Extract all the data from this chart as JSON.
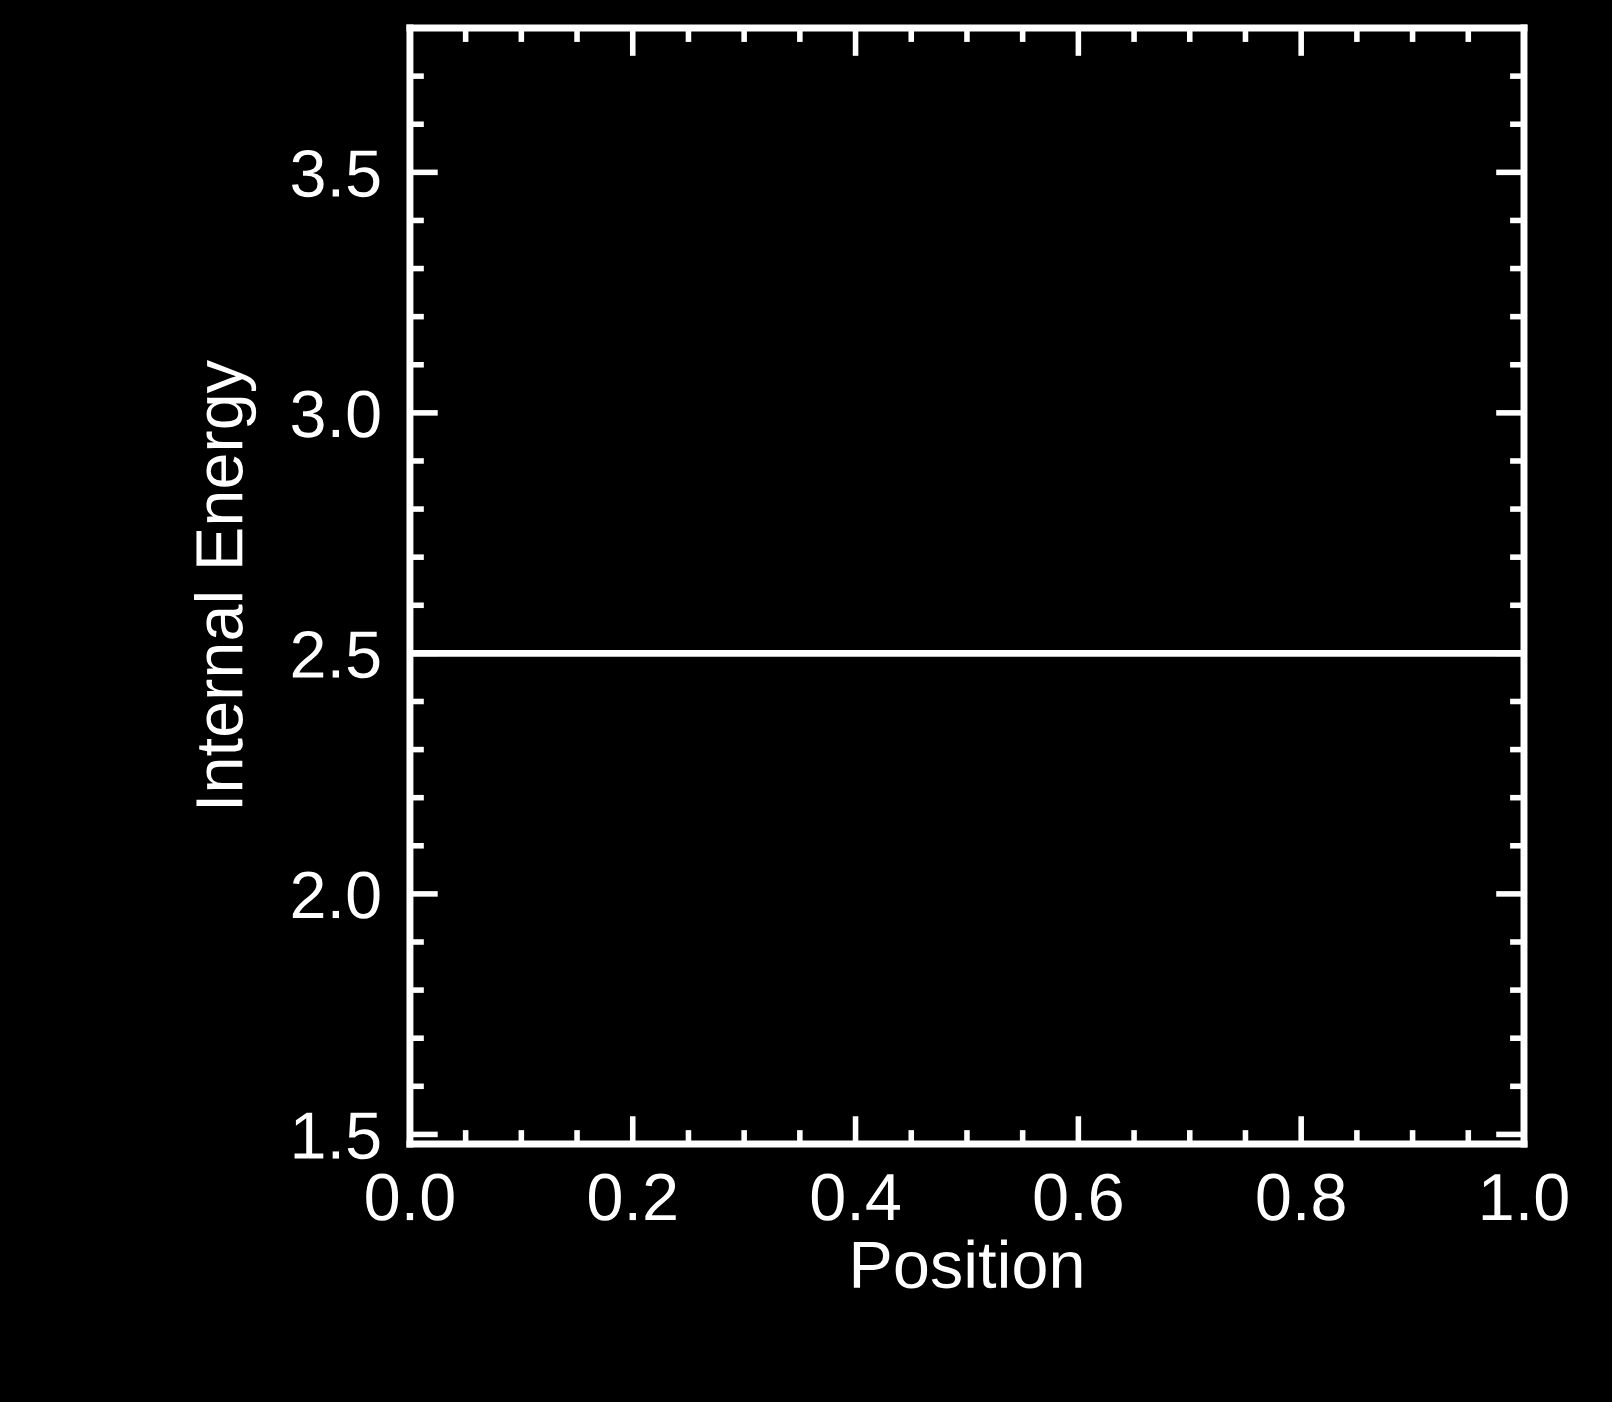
{
  "chart_data": {
    "type": "line",
    "xlabel": "Position",
    "ylabel": "Internal Energy",
    "x": [
      0.0,
      1.0
    ],
    "series": [
      {
        "color": "#ffffff",
        "values": [
          2.5,
          2.5
        ]
      }
    ],
    "xlim": [
      0.0,
      1.0
    ],
    "ylim": [
      1.48,
      3.8
    ],
    "xticks": [
      {
        "value": 0.0,
        "label": "0.0"
      },
      {
        "value": 0.2,
        "label": "0.2"
      },
      {
        "value": 0.4,
        "label": "0.4"
      },
      {
        "value": 0.6,
        "label": "0.6"
      },
      {
        "value": 0.8,
        "label": "0.8"
      },
      {
        "value": 1.0,
        "label": "1.0"
      }
    ],
    "yticks": [
      1.5,
      {
        "value": 2.0,
        "label": "2.0"
      },
      2.5,
      {
        "value": 3.0,
        "label": "3.0"
      },
      3.5
    ],
    "grid": false,
    "legend": false,
    "marker": "none",
    "line_style": "solid"
  }
}
